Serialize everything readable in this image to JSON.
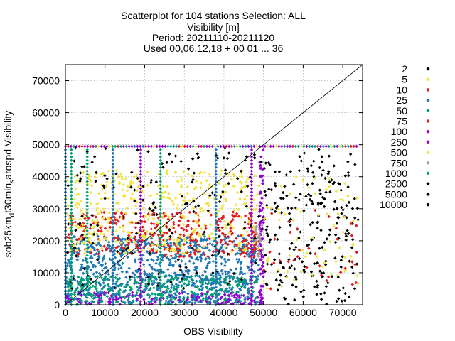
{
  "chart_data": {
    "type": "scatter",
    "title_lines": [
      "Scatterplot for  104 stations Selection: ALL",
      "Visibility [m]",
      "Period: 20211110-20211120",
      "Used 00,06,12,18 + 00 01 ... 36"
    ],
    "xlabel": "OBS Visibility",
    "ylabel_parts": {
      "main": "sob25km",
      "sub1": "d",
      "mid": "t30min",
      "sub2": "s",
      "end": "arospd Visibility"
    },
    "xlim": [
      0,
      75000
    ],
    "ylim": [
      0,
      75000
    ],
    "xticks": [
      0,
      10000,
      20000,
      30000,
      40000,
      50000,
      60000,
      70000
    ],
    "yticks": [
      0,
      10000,
      20000,
      30000,
      40000,
      50000,
      60000,
      70000
    ],
    "grid": true,
    "legend_position": "right",
    "diagonal_line": true,
    "series": [
      {
        "name": "2",
        "color": "#000000"
      },
      {
        "name": "5",
        "color": "#f0e442"
      },
      {
        "name": "10",
        "color": "#e41a1c"
      },
      {
        "name": "25",
        "color": "#1f78b4"
      },
      {
        "name": "50",
        "color": "#009e73"
      },
      {
        "name": "75",
        "color": "#e41a1c"
      },
      {
        "name": "100",
        "color": "#9400d3"
      },
      {
        "name": "250",
        "color": "#9400d3"
      },
      {
        "name": "500",
        "color": "#f0e442"
      },
      {
        "name": "750",
        "color": "#a0a0a0"
      },
      {
        "name": "1000",
        "color": "#009e73"
      },
      {
        "name": "2500",
        "color": "#000000"
      },
      {
        "name": "5000",
        "color": "#000000"
      },
      {
        "name": "10000",
        "color": "#000000"
      }
    ]
  }
}
